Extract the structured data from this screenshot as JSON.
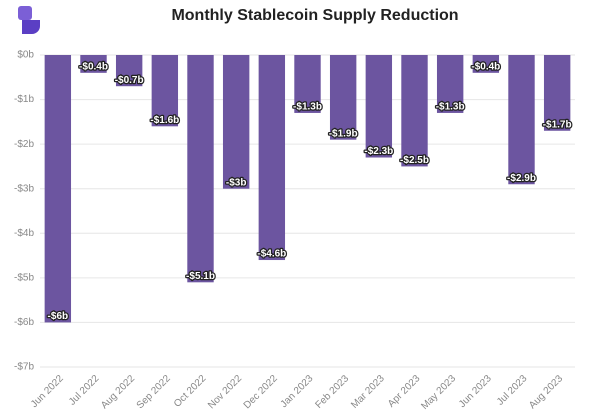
{
  "chart_data": {
    "type": "bar",
    "title": "Monthly Stablecoin Supply Reduction",
    "categories": [
      "Jun 2022",
      "Jul 2022",
      "Aug 2022",
      "Sep 2022",
      "Oct 2022",
      "Nov 2022",
      "Dec 2022",
      "Jan 2023",
      "Feb 2023",
      "Mar 2023",
      "Apr 2023",
      "May 2023",
      "Jun 2023",
      "Jul 2023",
      "Aug 2023"
    ],
    "values": [
      -6,
      -0.4,
      -0.7,
      -1.6,
      -5.1,
      -3,
      -4.6,
      -1.3,
      -1.9,
      -2.3,
      -2.5,
      -1.3,
      -0.4,
      -2.9,
      -1.7
    ],
    "value_labels": [
      "-$6b",
      "-$0.4b",
      "-$0.7b",
      "-$1.6b",
      "-$5.1b",
      "-$3b",
      "-$4.6b",
      "-$1.3b",
      "-$1.9b",
      "-$2.3b",
      "-$2.5b",
      "-$1.3b",
      "-$0.4b",
      "-$2.9b",
      "-$1.7b"
    ],
    "color": "#6c55a0",
    "ylim": [
      -7,
      0
    ],
    "yticks": [
      {
        "value": 0,
        "label": "$0b"
      },
      {
        "value": -1,
        "label": "-$1b"
      },
      {
        "value": -2,
        "label": "-$2b"
      },
      {
        "value": -3,
        "label": "-$3b"
      },
      {
        "value": -4,
        "label": "-$4b"
      },
      {
        "value": -5,
        "label": "-$5b"
      },
      {
        "value": -6,
        "label": "-$6b"
      },
      {
        "value": -7,
        "label": "-$7b"
      }
    ],
    "grid": true
  }
}
